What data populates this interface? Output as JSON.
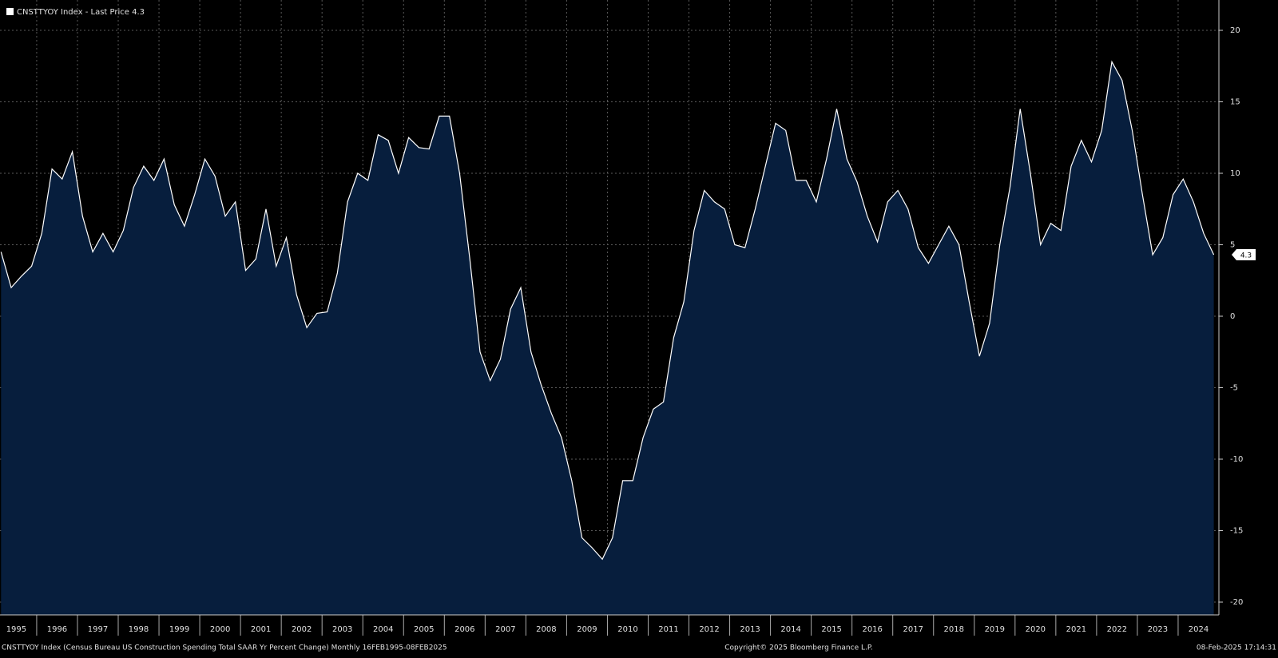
{
  "chart_data": {
    "type": "area",
    "legend_label": "CNSTTYOY Index - Last Price 4.3",
    "last_price": 4.3,
    "footer_left": "CNSTTYOY Index (Census Bureau US Construction Spending Total SAAR Yr Percent Change)  Monthly 16FEB1995-08FEB2025",
    "footer_center": "Copyright© 2025 Bloomberg Finance L.P.",
    "footer_right": "08-Feb-2025 17:14:31",
    "x": [
      1995.125,
      1995.375,
      1995.625,
      1995.875,
      1996.125,
      1996.375,
      1996.625,
      1996.875,
      1997.125,
      1997.375,
      1997.625,
      1997.875,
      1998.125,
      1998.375,
      1998.625,
      1998.875,
      1999.125,
      1999.375,
      1999.625,
      1999.875,
      2000.125,
      2000.375,
      2000.625,
      2000.875,
      2001.125,
      2001.375,
      2001.625,
      2001.875,
      2002.125,
      2002.375,
      2002.625,
      2002.875,
      2003.125,
      2003.375,
      2003.625,
      2003.875,
      2004.125,
      2004.375,
      2004.625,
      2004.875,
      2005.125,
      2005.375,
      2005.625,
      2005.875,
      2006.125,
      2006.375,
      2006.625,
      2006.875,
      2007.125,
      2007.375,
      2007.625,
      2007.875,
      2008.125,
      2008.375,
      2008.625,
      2008.875,
      2009.125,
      2009.375,
      2009.625,
      2009.875,
      2010.125,
      2010.375,
      2010.625,
      2010.875,
      2011.125,
      2011.375,
      2011.625,
      2011.875,
      2012.125,
      2012.375,
      2012.625,
      2012.875,
      2013.125,
      2013.375,
      2013.625,
      2013.875,
      2014.125,
      2014.375,
      2014.625,
      2014.875,
      2015.125,
      2015.375,
      2015.625,
      2015.875,
      2016.125,
      2016.375,
      2016.625,
      2016.875,
      2017.125,
      2017.375,
      2017.625,
      2017.875,
      2018.125,
      2018.375,
      2018.625,
      2018.875,
      2019.125,
      2019.375,
      2019.625,
      2019.875,
      2020.125,
      2020.375,
      2020.625,
      2020.875,
      2021.125,
      2021.375,
      2021.625,
      2021.875,
      2022.125,
      2022.375,
      2022.625,
      2022.875,
      2023.125,
      2023.375,
      2023.625,
      2023.875,
      2024.125,
      2024.375,
      2024.625,
      2024.875
    ],
    "series": [
      {
        "name": "CNSTTYOY Index",
        "color": "#ffffff",
        "values": [
          4.5,
          2.0,
          2.8,
          3.5,
          5.8,
          10.3,
          9.6,
          11.5,
          7,
          4.5,
          5.8,
          4.5,
          6.0,
          9.0,
          10.5,
          9.5,
          11,
          7.8,
          6.3,
          8.5,
          11,
          9.8,
          7,
          8,
          3.2,
          4,
          7.5,
          3.5,
          5.5,
          1.5,
          -0.8,
          0.2,
          0.3,
          3,
          8,
          10,
          9.5,
          12.7,
          12.3,
          10,
          12.5,
          11.8,
          11.7,
          14,
          14,
          10,
          4,
          -2.5,
          -4.5,
          -3,
          0.5,
          2,
          -2.5,
          -4.8,
          -6.8,
          -8.5,
          -11.5,
          -15.5,
          -16.2,
          -17,
          -15.5,
          -11.5,
          -11.5,
          -8.5,
          -6.5,
          -6,
          -1.5,
          1,
          6,
          8.8,
          8,
          7.5,
          5,
          4.8,
          7.5,
          10.5,
          13.5,
          13,
          9.5,
          9.5,
          8,
          11,
          14.5,
          11,
          9.4,
          7,
          5.2,
          8,
          8.8,
          7.5,
          4.8,
          3.7,
          5,
          6.3,
          5,
          1,
          -2.8,
          -0.5,
          5,
          9,
          14.5,
          10,
          5,
          6.5,
          6,
          10.5,
          12.3,
          10.8,
          13,
          17.8,
          16.5,
          13,
          8.5,
          4.3,
          5.5,
          8.5,
          9.6,
          8,
          5.8,
          4.3
        ]
      }
    ],
    "area_color": "#071e3d",
    "xlim": [
      1995.1,
      2025
    ],
    "xticks": [
      1995,
      1996,
      1997,
      1998,
      1999,
      2000,
      2001,
      2002,
      2003,
      2004,
      2005,
      2006,
      2007,
      2008,
      2009,
      2010,
      2011,
      2012,
      2013,
      2014,
      2015,
      2016,
      2017,
      2018,
      2019,
      2020,
      2021,
      2022,
      2023,
      2024
    ],
    "ylim": [
      -20,
      20
    ],
    "yticks": [
      -20,
      -15,
      -10,
      -5,
      0,
      5,
      10,
      15,
      20
    ],
    "grid": true
  }
}
